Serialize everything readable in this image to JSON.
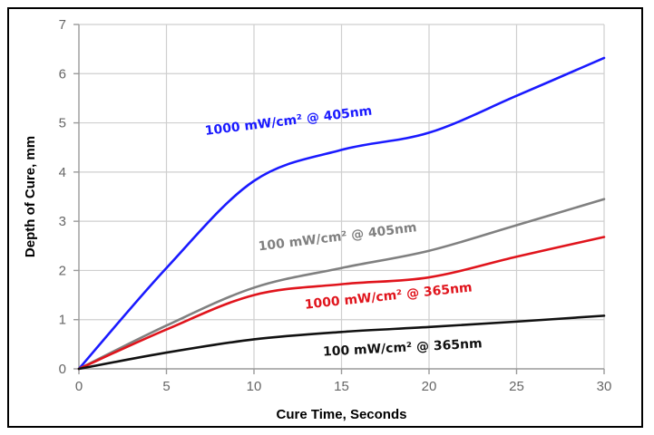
{
  "chart_data": {
    "type": "line",
    "xlabel": "Cure Time, Seconds",
    "ylabel": "Depth of Cure, mm",
    "xlim": [
      0,
      30
    ],
    "ylim": [
      0,
      7
    ],
    "xticks": [
      0,
      5,
      10,
      15,
      20,
      25,
      30
    ],
    "yticks": [
      0,
      1,
      2,
      3,
      4,
      5,
      6,
      7
    ],
    "grid": true,
    "series": [
      {
        "name": "1000 mW/cm² @ 405nm",
        "color": "#1a1aff",
        "x": [
          0,
          5,
          10,
          15,
          20,
          25,
          30
        ],
        "y": [
          0,
          2.05,
          3.82,
          4.45,
          4.8,
          5.55,
          6.32
        ]
      },
      {
        "name": "100 mW/cm² @ 405nm",
        "color": "#808080",
        "x": [
          0,
          5,
          10,
          15,
          20,
          25,
          30
        ],
        "y": [
          0,
          0.88,
          1.65,
          2.05,
          2.4,
          2.92,
          3.45
        ]
      },
      {
        "name": "1000 mW/cm² @ 365nm",
        "color": "#e0141c",
        "x": [
          0,
          5,
          10,
          15,
          20,
          25,
          30
        ],
        "y": [
          0,
          0.8,
          1.5,
          1.72,
          1.86,
          2.28,
          2.68
        ]
      },
      {
        "name": "100 mW/cm² @ 365nm",
        "color": "#111111",
        "x": [
          0,
          5,
          10,
          15,
          20,
          25,
          30
        ],
        "y": [
          0,
          0.33,
          0.6,
          0.75,
          0.85,
          0.96,
          1.08
        ]
      }
    ]
  }
}
